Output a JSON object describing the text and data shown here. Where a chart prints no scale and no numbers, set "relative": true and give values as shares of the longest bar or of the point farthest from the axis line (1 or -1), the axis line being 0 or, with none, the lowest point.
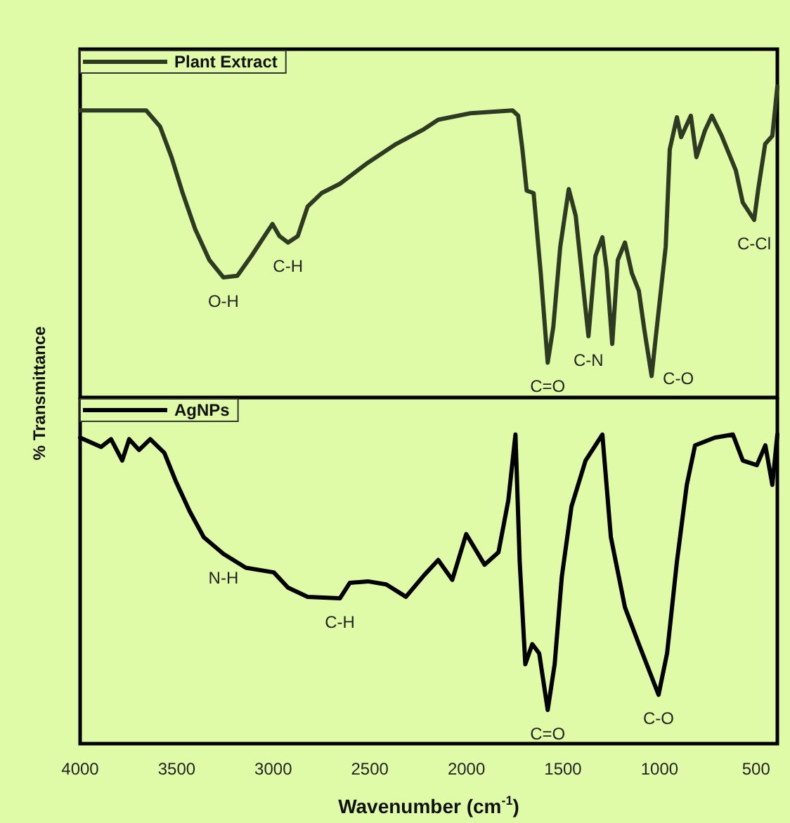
{
  "chart_data": [
    {
      "type": "line",
      "ylabel": "% Transmittance",
      "relative": true,
      "xlim": [
        4000,
        390
      ],
      "tick_labels": false,
      "legend": "top left",
      "grid": false,
      "marker": "none",
      "line_style": "solid",
      "series": [
        {
          "name": "Plant Extract",
          "color": "#2f3a22",
          "x": [
            4000,
            3658,
            3586,
            3527,
            3469,
            3404,
            3331,
            3258,
            3186,
            3113,
            3004,
            2968,
            2924,
            2873,
            2822,
            2750,
            2655,
            2510,
            2364,
            2219,
            2146,
            1979,
            1761,
            1732,
            1710,
            1688,
            1652,
            1615,
            1579,
            1550,
            1514,
            1470,
            1434,
            1383,
            1368,
            1332,
            1296,
            1274,
            1245,
            1216,
            1179,
            1143,
            1107,
            1078,
            1041,
            1019,
            968,
            947,
            910,
            888,
            838,
            809,
            765,
            729,
            678,
            605,
            569,
            510,
            489,
            453,
            416,
            390
          ],
          "values": [
            0.923,
            0.923,
            0.871,
            0.773,
            0.657,
            0.541,
            0.442,
            0.386,
            0.391,
            0.455,
            0.558,
            0.519,
            0.498,
            0.519,
            0.614,
            0.657,
            0.687,
            0.755,
            0.815,
            0.863,
            0.893,
            0.914,
            0.923,
            0.906,
            0.798,
            0.665,
            0.657,
            0.399,
            0.112,
            0.227,
            0.485,
            0.67,
            0.584,
            0.283,
            0.197,
            0.455,
            0.515,
            0.412,
            0.172,
            0.442,
            0.498,
            0.399,
            0.343,
            0.215,
            0.069,
            0.197,
            0.485,
            0.798,
            0.901,
            0.837,
            0.906,
            0.773,
            0.858,
            0.906,
            0.841,
            0.73,
            0.627,
            0.571,
            0.67,
            0.815,
            0.841,
            1.0
          ]
        }
      ],
      "annotations": [
        {
          "text": "O-H",
          "x": 3258,
          "y": 0.386
        },
        {
          "text": "C-H",
          "x": 2924,
          "y": 0.498
        },
        {
          "text": "C=O",
          "x": 1579,
          "y": 0.112
        },
        {
          "text": "C-N",
          "x": 1368,
          "y": 0.197
        },
        {
          "text": "C-O",
          "x": 1041,
          "y": 0.069
        },
        {
          "text": "C-Cl",
          "x": 510,
          "y": 0.571
        }
      ]
    },
    {
      "type": "line",
      "xlabel": "Wavenumber (cm$^{-1}$)",
      "relative": true,
      "xlim": [
        4000,
        390
      ],
      "xticks": [
        4000,
        3500,
        3000,
        2500,
        2000,
        1500,
        1000,
        500
      ],
      "tick_labels": "x",
      "legend": "top left",
      "grid": false,
      "marker": "none",
      "line_style": "solid",
      "series": [
        {
          "name": "AgNPs",
          "color": "#000000",
          "x": [
            4000,
            3891,
            3840,
            3782,
            3746,
            3695,
            3637,
            3564,
            3506,
            3433,
            3360,
            3258,
            3142,
            2997,
            2924,
            2822,
            2655,
            2604,
            2510,
            2415,
            2313,
            2219,
            2146,
            2073,
            2001,
            1906,
            1834,
            1783,
            1746,
            1724,
            1695,
            1659,
            1623,
            1579,
            1543,
            1506,
            1456,
            1383,
            1296,
            1252,
            1179,
            1107,
            1005,
            961,
            910,
            859,
            816,
            714,
            620,
            569,
            496,
            452,
            416,
            390
          ],
          "values": [
            0.99,
            0.96,
            0.985,
            0.916,
            0.985,
            0.95,
            0.985,
            0.941,
            0.851,
            0.752,
            0.668,
            0.614,
            0.569,
            0.554,
            0.505,
            0.475,
            0.47,
            0.52,
            0.525,
            0.515,
            0.475,
            0.545,
            0.594,
            0.53,
            0.678,
            0.579,
            0.619,
            0.787,
            1.0,
            0.589,
            0.257,
            0.322,
            0.292,
            0.109,
            0.257,
            0.54,
            0.767,
            0.916,
            1.0,
            0.668,
            0.441,
            0.322,
            0.158,
            0.292,
            0.589,
            0.837,
            0.965,
            0.99,
            1.0,
            0.916,
            0.901,
            0.965,
            0.837,
            1.0
          ]
        }
      ],
      "annotations": [
        {
          "text": "N-H",
          "x": 3258,
          "y": 0.614
        },
        {
          "text": "C-H",
          "x": 2655,
          "y": 0.47
        },
        {
          "text": "C=O",
          "x": 1579,
          "y": 0.109
        },
        {
          "text": "C-O",
          "x": 1005,
          "y": 0.158
        }
      ]
    }
  ]
}
